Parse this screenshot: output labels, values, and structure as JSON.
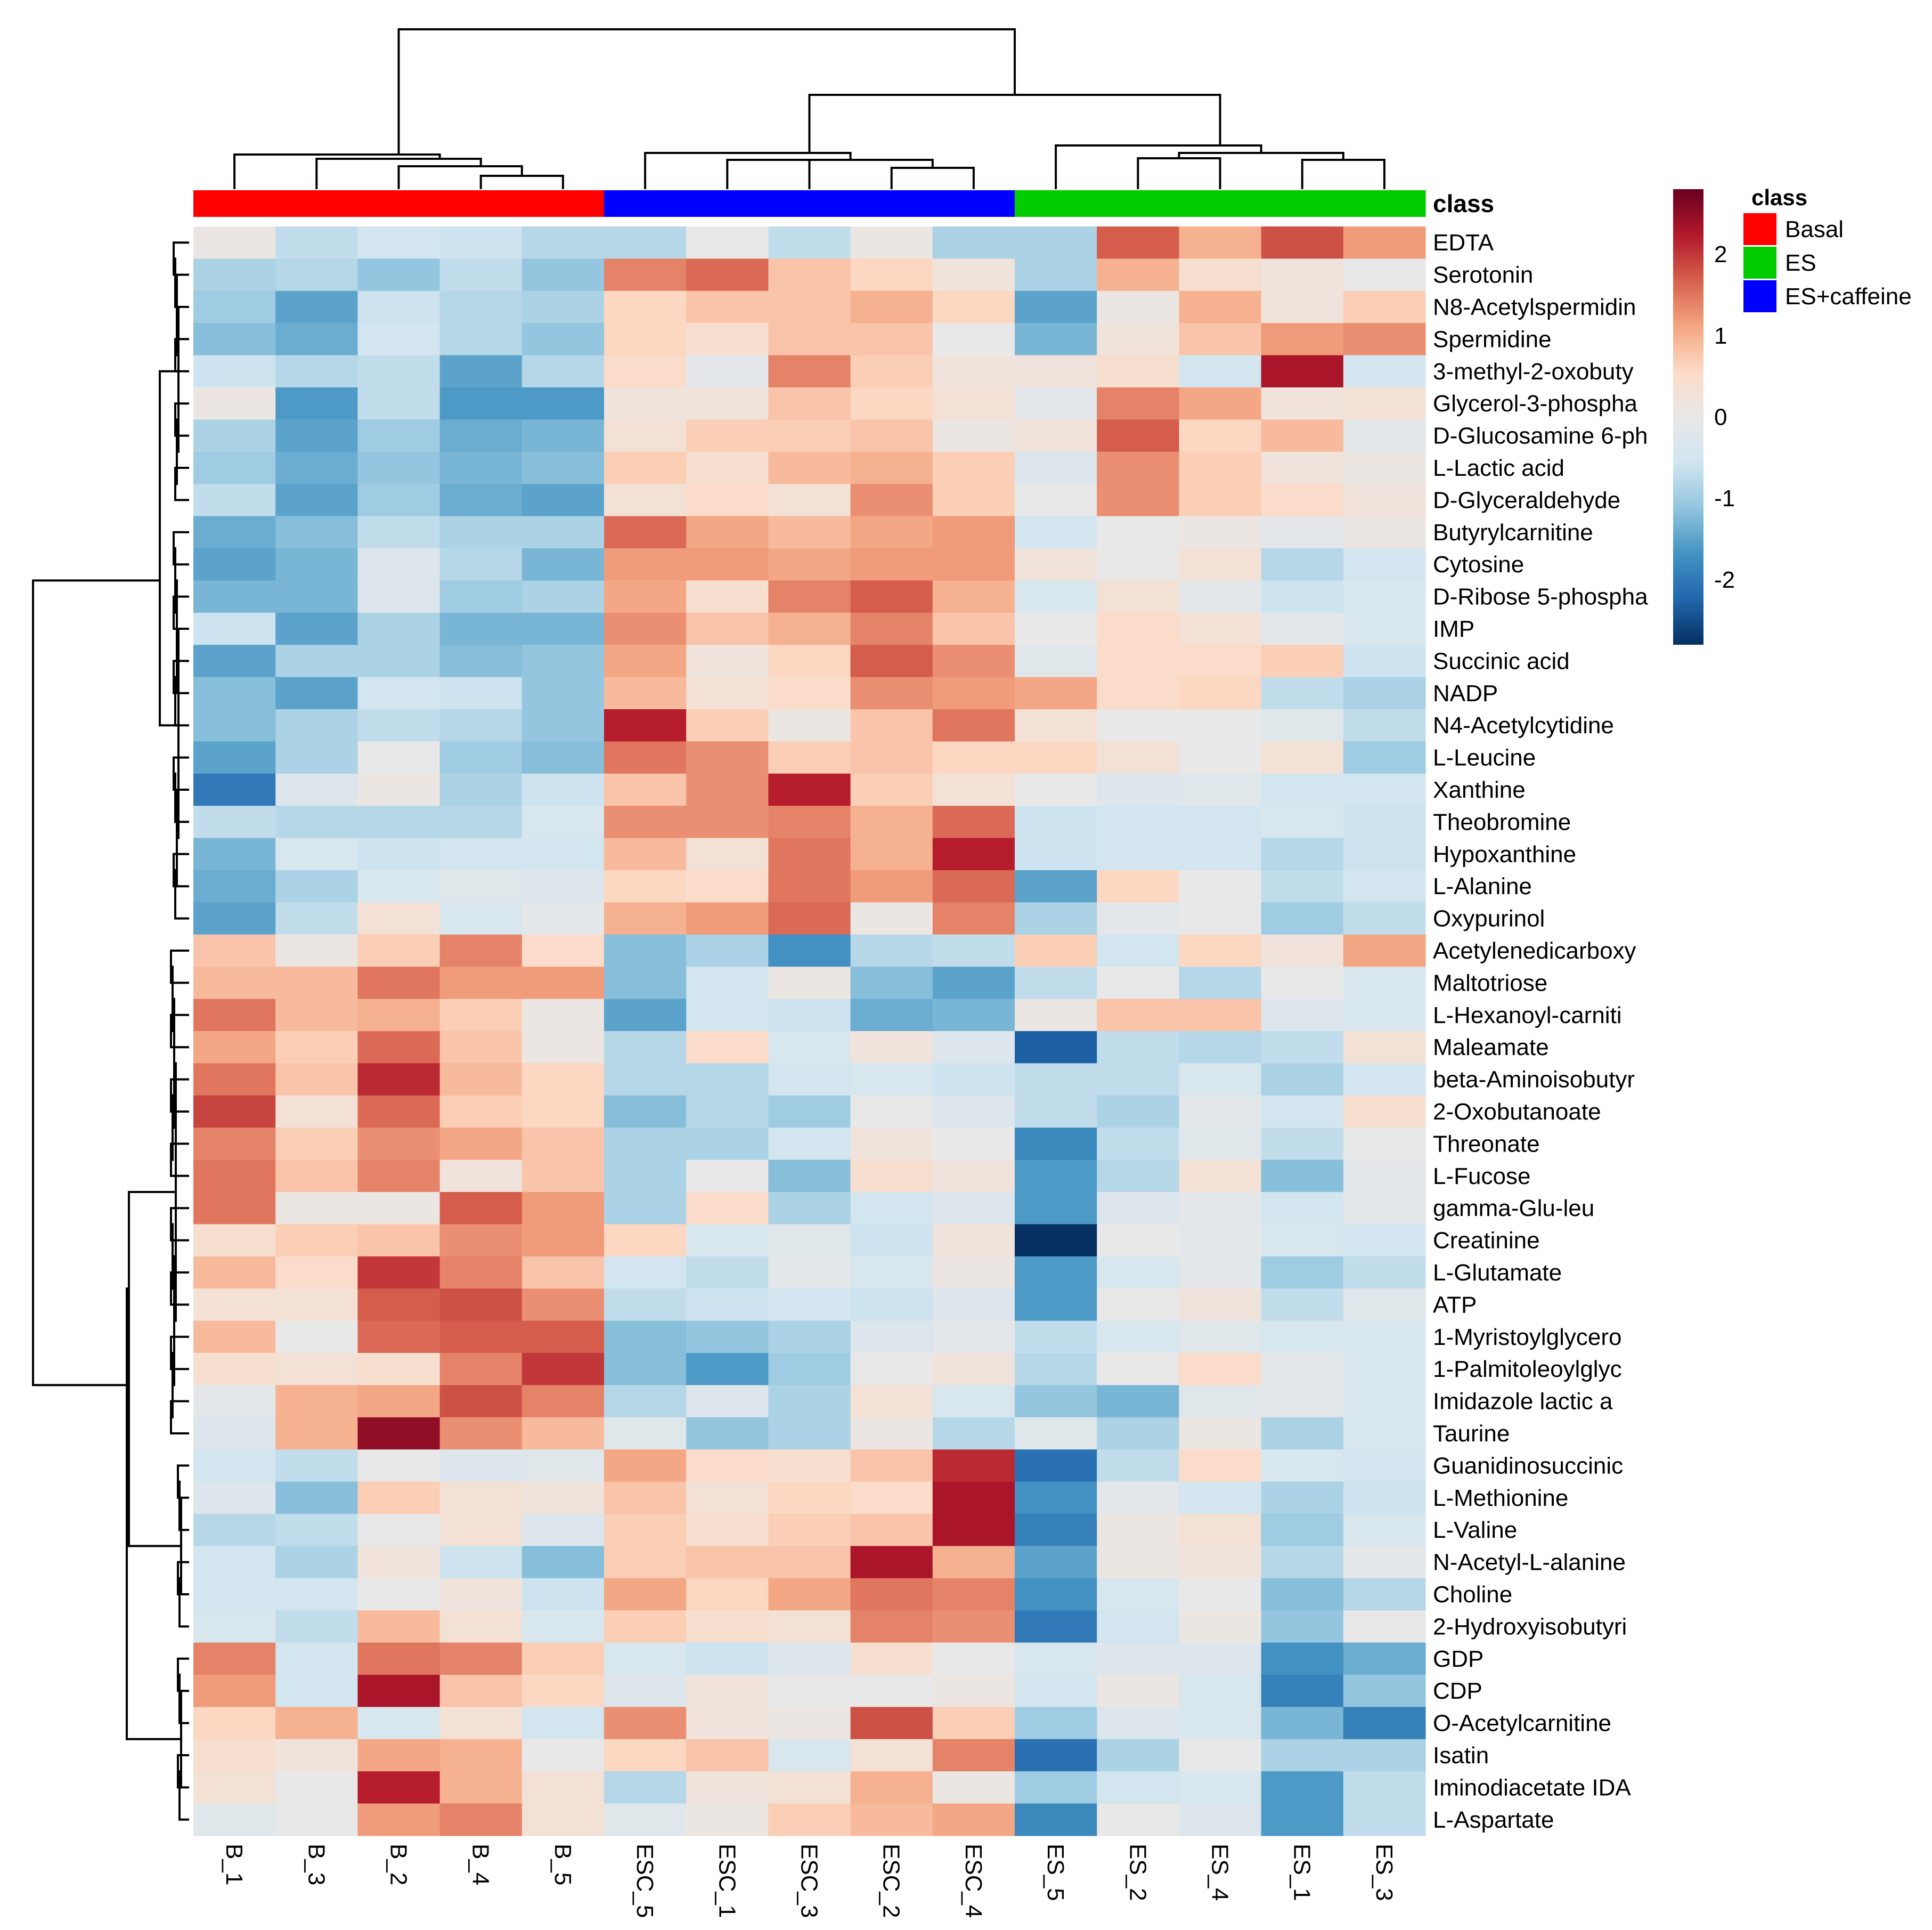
{
  "chart_data": {
    "type": "heatmap",
    "columns": [
      "B_1",
      "B_3",
      "B_2",
      "B_4",
      "B_5",
      "ESC_5",
      "ESC_1",
      "ESC_3",
      "ESC_2",
      "ESC_4",
      "ES_5",
      "ES_2",
      "ES_4",
      "ES_1",
      "ES_3"
    ],
    "column_classes": [
      "Basal",
      "Basal",
      "Basal",
      "Basal",
      "Basal",
      "ES+caffeine",
      "ES+caffeine",
      "ES+caffeine",
      "ES+caffeine",
      "ES+caffeine",
      "ES",
      "ES",
      "ES",
      "ES",
      "ES"
    ],
    "rows": [
      "EDTA",
      "Serotonin",
      "N8-Acetylspermidin",
      "Spermidine",
      "3-methyl-2-oxobuty",
      "Glycerol-3-phospha",
      "D-Glucosamine 6-ph",
      "L-Lactic acid",
      "D-Glyceraldehyde",
      "Butyrylcarnitine",
      "Cytosine",
      "D-Ribose 5-phospha",
      "IMP",
      "Succinic acid",
      "NADP",
      "N4-Acetylcytidine",
      "L-Leucine",
      "Xanthine",
      "Theobromine",
      "Hypoxanthine",
      "L-Alanine",
      "Oxypurinol",
      "Acetylenedicarboxy",
      "Maltotriose",
      "L-Hexanoyl-carniti",
      "Maleamate",
      "beta-Aminoisobutyr",
      "2-Oxobutanoate",
      "Threonate",
      "L-Fucose",
      "gamma-Glu-leu",
      "Creatinine",
      "L-Glutamate",
      "ATP",
      "1-Myristoylglycero",
      "1-Palmitoleoylglyc",
      "Imidazole lactic a",
      "Taurine",
      "Guanidinosuccinic",
      "L-Methionine",
      "L-Valine",
      "N-Acetyl-L-alanine",
      "Choline",
      "2-Hydroxyisobutyri",
      "GDP",
      "CDP",
      "O-Acetylcarnitine",
      "Isatin",
      "Iminodiacetate IDA",
      "L-Aspartate"
    ],
    "values": [
      [
        0.1,
        -0.7,
        -0.5,
        -0.6,
        -0.8,
        -0.8,
        0.0,
        -0.7,
        0.1,
        -0.9,
        -0.9,
        1.7,
        1.0,
        1.8,
        1.2
      ],
      [
        -0.9,
        -0.8,
        -1.1,
        -0.7,
        -1.1,
        1.4,
        1.6,
        0.8,
        0.6,
        0.2,
        -0.9,
        1.0,
        0.4,
        0.2,
        0.0
      ],
      [
        -1.0,
        -1.5,
        -0.6,
        -0.8,
        -0.9,
        0.6,
        0.8,
        0.8,
        1.0,
        0.6,
        -1.5,
        0.1,
        1.0,
        0.2,
        0.7
      ],
      [
        -1.2,
        -1.4,
        -0.5,
        -0.8,
        -1.1,
        0.6,
        0.4,
        0.8,
        0.8,
        0.0,
        -1.3,
        0.2,
        0.8,
        1.2,
        1.3
      ],
      [
        -0.6,
        -0.8,
        -0.7,
        -1.5,
        -0.8,
        0.5,
        -0.1,
        1.4,
        0.7,
        0.2,
        0.2,
        0.4,
        -0.5,
        2.3,
        -0.5
      ],
      [
        0.1,
        -1.6,
        -0.7,
        -1.6,
        -1.6,
        0.2,
        0.2,
        0.8,
        0.6,
        0.3,
        -0.1,
        1.4,
        1.1,
        0.2,
        0.3
      ],
      [
        -0.9,
        -1.5,
        -1.0,
        -1.4,
        -1.3,
        0.3,
        0.7,
        0.7,
        0.8,
        0.1,
        0.2,
        1.7,
        0.6,
        0.9,
        -0.1
      ],
      [
        -1.0,
        -1.4,
        -1.1,
        -1.3,
        -1.2,
        0.7,
        0.4,
        0.9,
        1.0,
        0.7,
        -0.3,
        1.3,
        0.7,
        0.2,
        0.1
      ],
      [
        -0.7,
        -1.5,
        -1.0,
        -1.4,
        -1.5,
        0.3,
        0.5,
        0.3,
        1.3,
        0.7,
        0.0,
        1.3,
        0.7,
        0.5,
        0.2
      ],
      [
        -1.4,
        -1.2,
        -0.7,
        -0.9,
        -0.9,
        1.6,
        1.1,
        0.9,
        1.1,
        1.2,
        -0.5,
        0.0,
        0.1,
        -0.1,
        0.1
      ],
      [
        -1.5,
        -1.3,
        -0.3,
        -0.8,
        -1.3,
        1.2,
        1.2,
        1.1,
        1.2,
        1.2,
        0.2,
        0.0,
        0.3,
        -0.8,
        -0.5
      ],
      [
        -1.3,
        -1.3,
        -0.3,
        -1.0,
        -0.9,
        1.1,
        0.4,
        1.4,
        1.7,
        1.0,
        -0.4,
        0.3,
        -0.1,
        -0.6,
        -0.4
      ],
      [
        -0.6,
        -1.5,
        -0.9,
        -1.3,
        -1.3,
        1.3,
        0.8,
        1.0,
        1.4,
        0.8,
        0.0,
        0.5,
        0.3,
        -0.1,
        -0.4
      ],
      [
        -1.5,
        -0.9,
        -0.9,
        -1.2,
        -1.1,
        1.1,
        0.2,
        0.6,
        1.7,
        1.3,
        -0.2,
        0.5,
        0.5,
        0.7,
        -0.6
      ],
      [
        -1.2,
        -1.5,
        -0.5,
        -0.6,
        -1.1,
        0.9,
        0.3,
        0.5,
        1.3,
        1.2,
        1.1,
        0.5,
        0.6,
        -0.7,
        -0.9
      ],
      [
        -1.2,
        -0.9,
        -0.7,
        -0.8,
        -1.1,
        2.2,
        0.7,
        0.1,
        0.8,
        1.5,
        0.3,
        0.0,
        0.0,
        -0.2,
        -0.7
      ],
      [
        -1.5,
        -0.9,
        0.0,
        -1.0,
        -1.2,
        1.5,
        1.3,
        0.7,
        0.8,
        0.6,
        0.6,
        0.3,
        0.0,
        0.3,
        -1.0
      ],
      [
        -2.0,
        -0.3,
        0.1,
        -0.9,
        -0.6,
        0.8,
        1.3,
        2.2,
        0.7,
        0.3,
        0.0,
        -0.3,
        -0.2,
        -0.5,
        -0.5
      ],
      [
        -0.7,
        -0.8,
        -0.8,
        -0.8,
        -0.4,
        1.3,
        1.3,
        1.4,
        1.0,
        1.6,
        -0.6,
        -0.5,
        -0.5,
        -0.4,
        -0.6
      ],
      [
        -1.3,
        -0.4,
        -0.6,
        -0.5,
        -0.5,
        0.9,
        0.3,
        1.5,
        1.0,
        2.2,
        -0.6,
        -0.5,
        -0.5,
        -0.8,
        -0.6
      ],
      [
        -1.4,
        -0.9,
        -0.4,
        -0.2,
        -0.3,
        0.6,
        0.5,
        1.5,
        1.2,
        1.6,
        -1.5,
        0.6,
        0.0,
        -0.7,
        -0.5
      ],
      [
        -1.5,
        -0.7,
        0.3,
        -0.4,
        -0.1,
        1.0,
        1.2,
        1.6,
        0.1,
        1.4,
        -0.9,
        -0.1,
        0.0,
        -1.0,
        -0.7
      ],
      [
        0.8,
        0.1,
        0.7,
        1.4,
        0.5,
        -1.2,
        -0.9,
        -1.7,
        -0.8,
        -0.7,
        0.7,
        -0.5,
        0.6,
        0.2,
        1.1
      ],
      [
        0.9,
        0.9,
        1.5,
        1.2,
        1.2,
        -1.2,
        -0.5,
        0.1,
        -1.2,
        -1.5,
        -0.7,
        0.0,
        -0.8,
        0.0,
        -0.4
      ],
      [
        1.5,
        0.9,
        1.0,
        0.7,
        0.1,
        -1.5,
        -0.5,
        -0.6,
        -1.4,
        -1.3,
        0.1,
        0.8,
        0.8,
        -0.3,
        -0.4
      ],
      [
        1.1,
        0.7,
        1.6,
        0.8,
        0.1,
        -0.8,
        0.5,
        -0.4,
        0.2,
        -0.3,
        -2.3,
        -0.7,
        -0.8,
        -0.7,
        0.3
      ],
      [
        1.5,
        0.8,
        2.1,
        0.9,
        0.6,
        -0.8,
        -0.8,
        -0.5,
        -0.4,
        -0.6,
        -0.7,
        -0.7,
        -0.4,
        -0.9,
        -0.5
      ],
      [
        1.9,
        0.3,
        1.6,
        0.7,
        0.6,
        -1.2,
        -0.8,
        -1.0,
        0.0,
        -0.3,
        -0.7,
        -0.9,
        -0.1,
        -0.5,
        0.4
      ],
      [
        1.4,
        0.7,
        1.3,
        1.1,
        0.8,
        -0.9,
        -0.9,
        -0.5,
        0.2,
        0.0,
        -1.8,
        -0.7,
        -0.2,
        -0.7,
        0.0
      ],
      [
        1.5,
        0.8,
        1.4,
        0.2,
        0.8,
        -0.9,
        0.0,
        -1.2,
        0.4,
        0.2,
        -1.6,
        -0.8,
        0.3,
        -1.2,
        -0.1
      ],
      [
        1.5,
        0.1,
        0.1,
        1.7,
        1.2,
        -0.9,
        0.5,
        -0.9,
        -0.5,
        -0.3,
        -1.6,
        -0.3,
        -0.1,
        -0.5,
        -0.1
      ],
      [
        0.4,
        0.7,
        0.8,
        1.3,
        1.2,
        0.6,
        -0.4,
        -0.2,
        -0.6,
        0.2,
        -2.8,
        0.0,
        -0.1,
        -0.4,
        -0.5
      ],
      [
        0.9,
        0.5,
        2.0,
        1.4,
        0.8,
        -0.5,
        -0.7,
        -0.1,
        -0.4,
        0.1,
        -1.6,
        -0.4,
        -0.1,
        -1.0,
        -0.7
      ],
      [
        0.3,
        0.3,
        1.7,
        1.8,
        1.3,
        -0.7,
        -0.6,
        -0.5,
        -0.6,
        -0.3,
        -1.6,
        0.0,
        0.2,
        -0.7,
        -0.2
      ],
      [
        0.9,
        0.0,
        1.6,
        1.7,
        1.7,
        -1.2,
        -1.1,
        -0.9,
        -0.3,
        -0.1,
        -0.7,
        -0.4,
        -0.2,
        -0.4,
        -0.4
      ],
      [
        0.4,
        0.3,
        0.4,
        1.4,
        2.0,
        -1.2,
        -1.6,
        -1.0,
        0.0,
        0.2,
        -0.8,
        0.0,
        0.5,
        -0.1,
        -0.4
      ],
      [
        -0.1,
        1.0,
        1.1,
        1.8,
        1.4,
        -0.8,
        -0.3,
        -0.9,
        0.3,
        -0.4,
        -1.1,
        -1.3,
        -0.2,
        -0.1,
        -0.4
      ],
      [
        -0.3,
        1.0,
        2.5,
        1.3,
        0.9,
        -0.2,
        -1.1,
        -0.9,
        0.1,
        -0.8,
        -0.2,
        -0.9,
        0.1,
        -0.9,
        -0.4
      ],
      [
        -0.5,
        -0.7,
        0.0,
        -0.3,
        -0.2,
        1.1,
        0.5,
        0.4,
        0.8,
        2.1,
        -2.1,
        -0.7,
        0.5,
        -0.4,
        -0.5
      ],
      [
        -0.3,
        -1.2,
        0.7,
        0.3,
        0.2,
        0.8,
        0.3,
        0.6,
        0.5,
        2.3,
        -1.7,
        -0.1,
        -0.5,
        -0.9,
        -0.6
      ],
      [
        -0.8,
        -0.7,
        0.0,
        0.3,
        -0.3,
        0.7,
        0.4,
        0.7,
        0.8,
        2.3,
        -1.9,
        0.1,
        0.3,
        -1.0,
        -0.4
      ],
      [
        -0.5,
        -0.9,
        0.2,
        -0.6,
        -1.2,
        0.7,
        0.8,
        0.8,
        2.3,
        1.0,
        -1.5,
        0.1,
        0.2,
        -0.8,
        -0.1
      ],
      [
        -0.5,
        -0.5,
        0.0,
        0.2,
        -0.6,
        1.1,
        0.6,
        1.1,
        1.5,
        1.4,
        -1.7,
        -0.4,
        0.0,
        -1.2,
        -0.8
      ],
      [
        -0.4,
        -0.7,
        0.9,
        0.3,
        -0.4,
        0.7,
        0.4,
        0.3,
        1.4,
        1.3,
        -2.0,
        -0.5,
        0.1,
        -1.1,
        0.0
      ],
      [
        1.4,
        -0.5,
        1.5,
        1.4,
        0.7,
        -0.4,
        -0.6,
        -0.3,
        0.4,
        0.0,
        -0.4,
        -0.3,
        -0.3,
        -1.7,
        -1.4
      ],
      [
        1.2,
        -0.5,
        2.3,
        0.8,
        0.6,
        -0.3,
        0.2,
        0.0,
        0.0,
        0.1,
        -0.5,
        0.1,
        -0.4,
        -1.9,
        -1.1
      ],
      [
        0.6,
        1.0,
        -0.4,
        0.3,
        -0.5,
        1.3,
        0.2,
        0.1,
        1.8,
        0.7,
        -1.0,
        -0.3,
        -0.4,
        -1.3,
        -1.9
      ],
      [
        0.4,
        0.2,
        1.1,
        1.0,
        0.0,
        0.6,
        0.8,
        -0.4,
        0.3,
        1.4,
        -2.1,
        -0.9,
        0.0,
        -0.9,
        -0.9
      ],
      [
        0.3,
        0.0,
        2.2,
        1.0,
        0.3,
        -0.8,
        0.2,
        0.3,
        1.0,
        0.1,
        -1.0,
        -0.5,
        -0.4,
        -1.6,
        -0.7
      ],
      [
        -0.2,
        0.0,
        1.2,
        1.4,
        0.3,
        -0.2,
        0.1,
        0.7,
        0.9,
        1.1,
        -1.8,
        0.0,
        -0.3,
        -1.6,
        -0.7
      ]
    ],
    "class_label": "class",
    "legend_title": "class",
    "legend_entries": [
      {
        "label": "Basal",
        "color": "#FF0000"
      },
      {
        "label": "ES",
        "color": "#00CC00"
      },
      {
        "label": "ES+caffeine",
        "color": "#0000FF"
      }
    ],
    "colorbar": {
      "range": [
        -2.8,
        2.8
      ],
      "ticks": [
        2,
        1,
        0,
        -1,
        -2
      ],
      "tick_labels": [
        "2",
        "1",
        "0",
        "-1",
        "-2"
      ],
      "colors": [
        "#053061",
        "#2166AC",
        "#4393C3",
        "#92C5DE",
        "#D1E5F0",
        "#E8E8E8",
        "#FDDBC7",
        "#F4A582",
        "#D6604D",
        "#B2182B",
        "#67001F"
      ]
    },
    "column_dendrogram": "((B_1,(B_3,(B_2,(B_4,B_5)))),((ESC_5,(ESC_1,(ESC_3,(ESC_2,ESC_4)))),(ES_5,((ES_2,ES_4),(ES_1,ES_3)))))",
    "row_dendrogram": "two main clusters: rows 1-22 (up in ES+caffeine) and rows 23-50 (up in Basal)"
  }
}
